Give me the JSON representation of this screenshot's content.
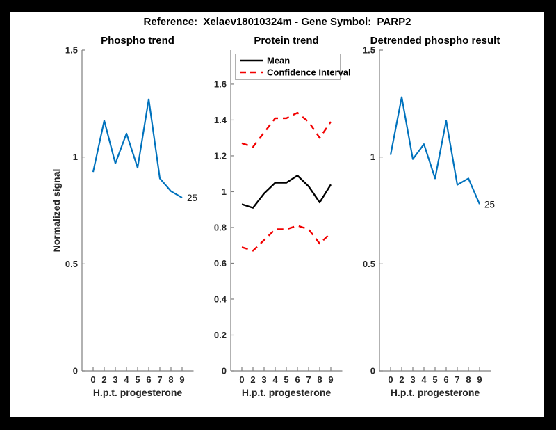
{
  "page": {
    "title": "Reference:  Xelaev18010324m - Gene Symbol:  PARP2"
  },
  "colors": {
    "data_blue": "#0072bd",
    "mean_black": "#000000",
    "ci_red": "#f20000",
    "axis_gray": "#7f7f7f",
    "tick_text": "#262626"
  },
  "chart_data": [
    {
      "type": "line",
      "title": "Phospho trend",
      "xlabel": "H.p.t. progesterone",
      "ylabel": "Normalized signal",
      "categories": [
        "0",
        "2",
        "3",
        "4",
        "5",
        "6",
        "7",
        "8",
        "9"
      ],
      "ylim": [
        0,
        1.5
      ],
      "yticks": [
        0,
        0.5,
        1,
        1.5
      ],
      "yticklabels": [
        "0",
        "0.5",
        "1",
        "1.5"
      ],
      "grid": false,
      "end_label": "25",
      "series": [
        {
          "name": "phospho-signal",
          "style": "solid",
          "color": "#0072bd",
          "values": [
            0.93,
            1.17,
            0.97,
            1.11,
            0.95,
            1.27,
            0.9,
            0.84,
            0.81
          ]
        }
      ]
    },
    {
      "type": "line",
      "title": "Protein trend",
      "xlabel": "H.p.t. progesterone",
      "ylabel": "",
      "categories": [
        "0",
        "2",
        "3",
        "4",
        "5",
        "6",
        "7",
        "8",
        "9"
      ],
      "ylim": [
        0,
        1.79
      ],
      "yticks": [
        0,
        0.2,
        0.4,
        0.6,
        0.8,
        1,
        1.2,
        1.4,
        1.6
      ],
      "yticklabels": [
        "0",
        "0.2",
        "0.4",
        "0.6",
        "0.8",
        "1",
        "1.2",
        "1.4",
        "1.6"
      ],
      "grid": false,
      "legend": {
        "position": "northwest",
        "entries": [
          {
            "label": "Mean",
            "color": "#000000",
            "style": "solid"
          },
          {
            "label": "Confidence Interval",
            "color": "#f20000",
            "style": "dashed"
          }
        ]
      },
      "series": [
        {
          "name": "confidence-interval-upper",
          "style": "dashed",
          "color": "#f20000",
          "values": [
            1.27,
            1.25,
            1.33,
            1.41,
            1.41,
            1.44,
            1.39,
            1.3,
            1.39
          ]
        },
        {
          "name": "confidence-interval-lower",
          "style": "dashed",
          "color": "#f20000",
          "values": [
            0.69,
            0.67,
            0.73,
            0.79,
            0.79,
            0.81,
            0.79,
            0.71,
            0.77
          ]
        },
        {
          "name": "mean",
          "style": "solid",
          "color": "#000000",
          "values": [
            0.93,
            0.91,
            0.99,
            1.05,
            1.05,
            1.09,
            1.03,
            0.94,
            1.04
          ]
        }
      ]
    },
    {
      "type": "line",
      "title": "Detrended phospho result",
      "xlabel": "H.p.t. progesterone",
      "ylabel": "",
      "categories": [
        "0",
        "2",
        "3",
        "4",
        "5",
        "6",
        "7",
        "8",
        "9"
      ],
      "ylim": [
        0,
        1.5
      ],
      "yticks": [
        0,
        0.5,
        1,
        1.5
      ],
      "yticklabels": [
        "0",
        "0.5",
        "1",
        "1.5"
      ],
      "grid": false,
      "end_label": "25",
      "series": [
        {
          "name": "detrended-phospho-signal",
          "style": "solid",
          "color": "#0072bd",
          "values": [
            1.01,
            1.28,
            0.99,
            1.06,
            0.9,
            1.17,
            0.87,
            0.9,
            0.78
          ]
        }
      ]
    }
  ]
}
